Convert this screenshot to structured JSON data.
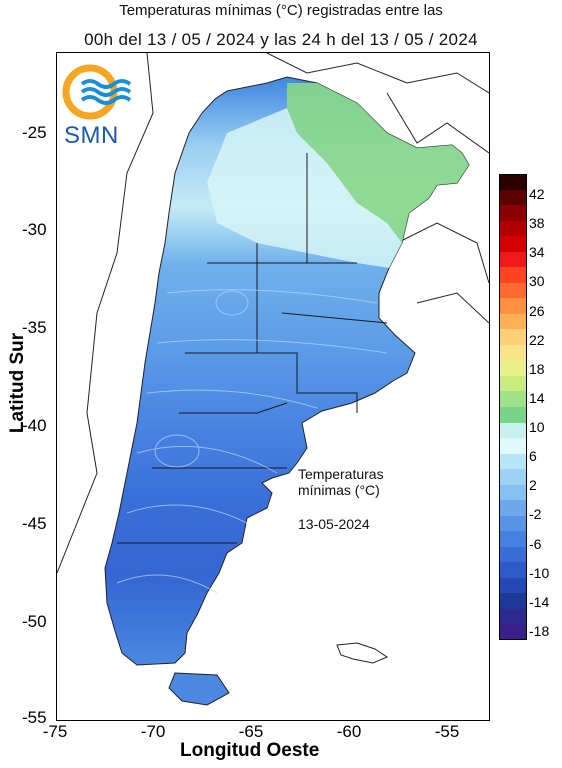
{
  "header": {
    "line1": "Temperaturas mínimas (°C) registradas entre las",
    "line2": "00h del 13 / 05 / 2024 y las 24 h del 13 / 05 / 2024"
  },
  "logo": {
    "text": "SMN",
    "icon": "smn-logo-icon",
    "ring_color": "#f5a623",
    "wave_color": "#1a8fd6"
  },
  "axes": {
    "xlabel": "Longitud Oeste",
    "ylabel": "Latitud Sur",
    "xticks": [
      "-75",
      "-70",
      "-65",
      "-60",
      "-55"
    ],
    "yticks": [
      "-25",
      "-30",
      "-35",
      "-40",
      "-45",
      "-50",
      "-55"
    ],
    "lon_range": [
      -75,
      -53
    ],
    "lat_range": [
      -55,
      -21
    ]
  },
  "annotation": {
    "line1": "Temperaturas",
    "line2": "mínimas (°C)",
    "date": "13-05-2024"
  },
  "legend": {
    "labels": [
      "42",
      "38",
      "34",
      "30",
      "26",
      "22",
      "18",
      "14",
      "10",
      "6",
      "2",
      "-2",
      "-6",
      "-10",
      "-14",
      "-18"
    ],
    "colors": [
      "#2a0000",
      "#5c0000",
      "#8b0000",
      "#b20000",
      "#d40000",
      "#ee1a1a",
      "#ff4422",
      "#ff6a2e",
      "#ff9040",
      "#ffb055",
      "#ffd078",
      "#f8e48a",
      "#e8f08a",
      "#c8ec80",
      "#a0e288",
      "#78d488",
      "#c8f0ec",
      "#e0fafa",
      "#b8e4f8",
      "#9ed2f4",
      "#86c0f0",
      "#6ea8ea",
      "#5894e6",
      "#4680e0",
      "#3a6ed6",
      "#2e5ac8",
      "#2448b4",
      "#1e3898",
      "#2a2a90",
      "#3a1e8a"
    ]
  }
}
